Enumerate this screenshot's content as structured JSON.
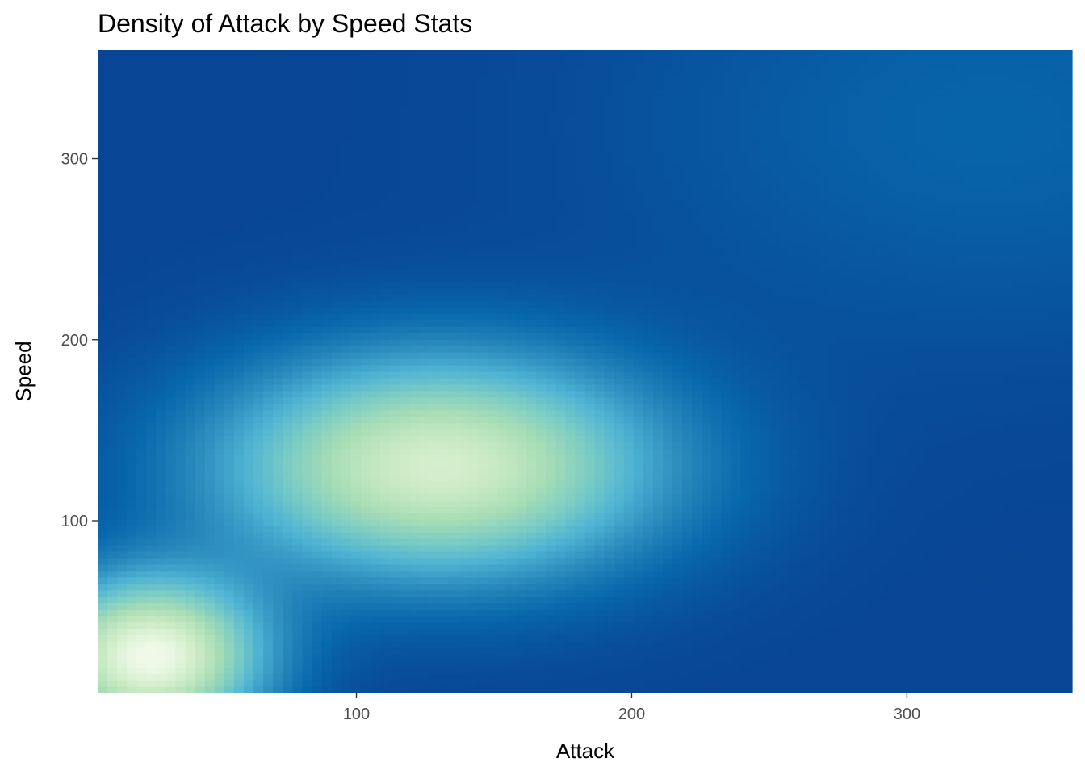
{
  "chart_data": {
    "type": "heatmap",
    "title": "Density of Attack by Speed Stats",
    "xlabel": "Attack",
    "ylabel": "Speed",
    "xlim": [
      6,
      360
    ],
    "ylim": [
      5,
      360
    ],
    "x_ticks": [
      100,
      200,
      300
    ],
    "y_ticks": [
      100,
      200,
      300
    ],
    "grid": false,
    "legend": "none",
    "colormap": [
      "#084594",
      "#0868ac",
      "#2b8cbe",
      "#4eb3d3",
      "#7bccc4",
      "#a8ddb5",
      "#ccebc5",
      "#f0f9e8"
    ],
    "density_peaks": [
      {
        "x": 25,
        "y": 25,
        "relative_density": 1.0
      },
      {
        "x": 130,
        "y": 130,
        "relative_density": 0.88
      },
      {
        "x": 330,
        "y": 320,
        "relative_density": 0.1
      }
    ]
  }
}
